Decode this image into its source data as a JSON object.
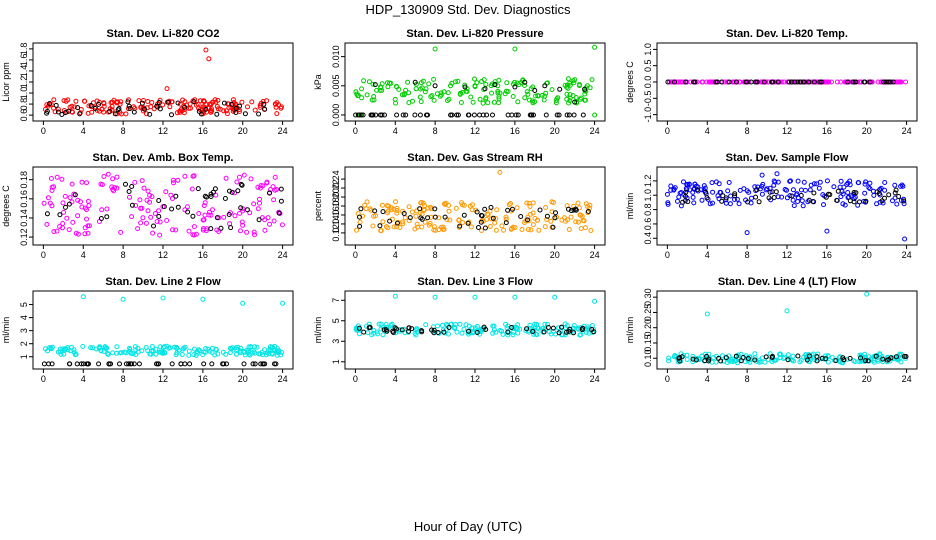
{
  "figure": {
    "title": "HDP_130909  Std. Dev. Diagnostics",
    "xlabel": "Hour of Day (UTC)"
  },
  "chart_data": [
    {
      "type": "scatter",
      "title": "Stan. Dev. Li-820 CO2",
      "ylabel": "Licor ppm",
      "xlim": [
        0,
        24
      ],
      "ylim": [
        0.55,
        1.85
      ],
      "xticks": [
        "0",
        "4",
        "8",
        "12",
        "16",
        "20",
        "24"
      ],
      "yticks": [
        "0.6",
        "0.8",
        "1.0",
        "1.2",
        "1.4",
        "1.6",
        "1.8"
      ],
      "series": [
        {
          "color": "#ff0000",
          "band": [
            0.62,
            0.88
          ],
          "x": [
            16.3,
            16.6,
            12.4
          ],
          "y": [
            1.78,
            1.62,
            1.08
          ]
        },
        {
          "color": "#000000",
          "band": [
            0.6,
            0.85
          ],
          "x": [],
          "y": []
        }
      ]
    },
    {
      "type": "scatter",
      "title": "Stan. Dev. Li-820 Pressure",
      "ylabel": "kPa",
      "xlim": [
        0,
        24
      ],
      "ylim": [
        -0.0005,
        0.0118
      ],
      "xticks": [
        "0",
        "4",
        "8",
        "12",
        "16",
        "20",
        "24"
      ],
      "yticks": [
        "0.000",
        "0.005",
        "0.010"
      ],
      "series": [
        {
          "color": "#00cc00",
          "band": [
            0.002,
            0.0062
          ],
          "x": [
            8,
            16,
            24,
            0.5,
            24
          ],
          "y": [
            0.0113,
            0.0113,
            0.0116,
            0.0,
            0.0
          ]
        },
        {
          "color": "#000000",
          "band": [
            0.0,
            0.0
          ],
          "x": [
            2,
            6,
            8,
            11,
            13,
            14,
            16,
            17,
            18,
            19,
            20.5,
            22,
            23
          ],
          "y": [
            0.0052,
            0.0056,
            0.005,
            0.0048,
            0.0045,
            0.0052,
            0.0048,
            0.0056,
            0.0042,
            0.005,
            0.0044,
            0.0022,
            0.0044
          ]
        }
      ]
    },
    {
      "type": "scatter",
      "title": "Stan. Dev. Li-820 Temp.",
      "ylabel": "degrees C",
      "xlim": [
        0,
        24
      ],
      "ylim": [
        -1.1,
        1.1
      ],
      "xticks": [
        "0",
        "4",
        "8",
        "12",
        "16",
        "20",
        "24"
      ],
      "yticks": [
        "-1.0",
        "-0.5",
        "0.0",
        "0.5",
        "1.0"
      ],
      "series": [
        {
          "color": "#ff00ff",
          "band": [
            0.0,
            0.0
          ],
          "x": [],
          "y": []
        },
        {
          "color": "#000000",
          "band": [
            0.0,
            0.0
          ],
          "x": [],
          "y": []
        }
      ]
    },
    {
      "type": "scatter",
      "title": "Stan. Dev. Amb. Box Temp.",
      "ylabel": "degrees C",
      "xlim": [
        0,
        24
      ],
      "ylim": [
        0.115,
        0.19
      ],
      "xticks": [
        "0",
        "4",
        "8",
        "12",
        "16",
        "20",
        "24"
      ],
      "yticks": [
        "0.12",
        "0.14",
        "0.16",
        "0.18"
      ],
      "series": [
        {
          "color": "#ff00ff",
          "band": [
            0.122,
            0.186
          ],
          "x": [],
          "y": []
        },
        {
          "color": "#000000",
          "band": [
            0.128,
            0.18
          ],
          "x": [],
          "y": []
        }
      ]
    },
    {
      "type": "scatter",
      "title": "Stan. Dev. Gas Stream RH",
      "ylabel": "percent",
      "xlim": [
        0,
        24
      ],
      "ylim": [
        0.1,
        0.26
      ],
      "xticks": [
        "0",
        "4",
        "8",
        "12",
        "16",
        "20",
        "24"
      ],
      "yticks": [
        "0.12",
        "0.14",
        "0.16",
        "0.18",
        "0.20",
        "0.22",
        "0.24"
      ],
      "series": [
        {
          "color": "#ff9900",
          "band": [
            0.125,
            0.19
          ],
          "x": [
            14.5
          ],
          "y": [
            0.255
          ]
        },
        {
          "color": "#000000",
          "band": [
            0.13,
            0.18
          ],
          "x": [],
          "y": []
        }
      ]
    },
    {
      "type": "scatter",
      "title": "Stan. Dev. Sample Flow",
      "ylabel": "ml/min",
      "xlim": [
        0,
        24
      ],
      "ylim": [
        0.35,
        1.35
      ],
      "xticks": [
        "0",
        "4",
        "8",
        "12",
        "16",
        "20",
        "24"
      ],
      "yticks": [
        "0.4",
        "0.6",
        "0.8",
        "1.0",
        "1.2"
      ],
      "series": [
        {
          "color": "#0000ff",
          "band": [
            0.85,
            1.2
          ],
          "x": [
            8,
            16,
            23.8,
            11,
            9.5
          ],
          "y": [
            0.48,
            0.5,
            0.39,
            1.3,
            1.28
          ]
        },
        {
          "color": "#000000",
          "band": [
            0.9,
            1.08
          ],
          "x": [],
          "y": []
        }
      ]
    },
    {
      "type": "scatter",
      "title": "Stan. Dev. Line 2 Flow",
      "ylabel": "ml/min",
      "xlim": [
        0,
        24
      ],
      "ylim": [
        0.3,
        5.8
      ],
      "xticks": [
        "0",
        "4",
        "8",
        "12",
        "16",
        "20",
        "24"
      ],
      "yticks": [
        "1",
        "2",
        "3",
        "4",
        "5"
      ],
      "series": [
        {
          "color": "#00e5e5",
          "band": [
            1.1,
            1.8
          ],
          "x": [
            4,
            8,
            12,
            16,
            20,
            24
          ],
          "y": [
            5.6,
            5.4,
            5.5,
            5.4,
            5.1,
            5.1
          ]
        },
        {
          "color": "#000000",
          "band": [
            0.45,
            0.45
          ],
          "x": [],
          "y": []
        }
      ]
    },
    {
      "type": "scatter",
      "title": "Stan. Dev. Line 3 Flow",
      "ylabel": "ml/min",
      "xlim": [
        0,
        24
      ],
      "ylim": [
        0.6,
        7.6
      ],
      "xticks": [
        "0",
        "4",
        "8",
        "12",
        "16",
        "20",
        "24"
      ],
      "yticks": [
        "1",
        "3",
        "5",
        "7"
      ],
      "series": [
        {
          "color": "#00e5e5",
          "band": [
            3.6,
            4.7
          ],
          "x": [
            4,
            8,
            12,
            16,
            20,
            24
          ],
          "y": [
            7.4,
            7.3,
            7.3,
            7.3,
            7.3,
            6.9
          ]
        },
        {
          "color": "#000000",
          "band": [
            3.8,
            4.4
          ],
          "x": [],
          "y": []
        }
      ]
    },
    {
      "type": "scatter",
      "title": "Stan. Dev. Line 4 (LT) Flow",
      "ylabel": "ml/min",
      "xlim": [
        0,
        24
      ],
      "ylim": [
        0.075,
        0.31
      ],
      "xticks": [
        "0",
        "4",
        "8",
        "12",
        "16",
        "20",
        "24"
      ],
      "yticks": [
        "0.10",
        "0.15",
        "0.20",
        "0.25",
        "0.30"
      ],
      "series": [
        {
          "color": "#00e5e5",
          "band": [
            0.085,
            0.115
          ],
          "x": [
            4,
            12,
            20
          ],
          "y": [
            0.245,
            0.255,
            0.31
          ]
        },
        {
          "color": "#000000",
          "band": [
            0.09,
            0.108
          ],
          "x": [],
          "y": []
        }
      ]
    }
  ]
}
